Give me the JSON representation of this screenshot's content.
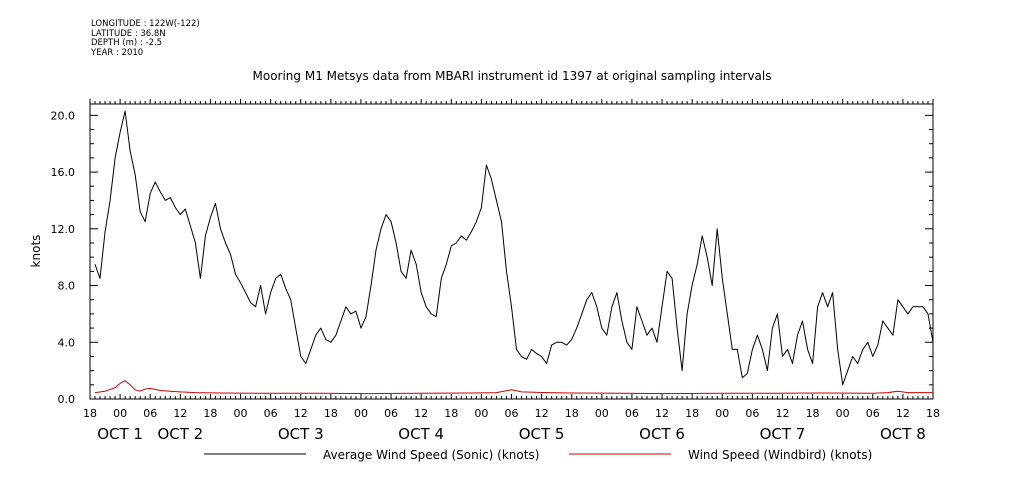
{
  "metadata": {
    "longitude": "LONGITUDE : 122W(-122)",
    "latitude": "LATITUDE : 36.8N",
    "depth": "DEPTH (m) : -2.5",
    "year": "YEAR : 2010"
  },
  "chart_data": {
    "type": "line",
    "title": "Mooring M1 Metsys data from MBARI instrument id 1397 at original sampling intervals",
    "ylabel": "knots",
    "xlabel": "",
    "ylim": [
      0,
      20.8
    ],
    "yticks": [
      0.0,
      4.0,
      8.0,
      12.0,
      16.0,
      20.0
    ],
    "ytick_labels": [
      "0.0",
      "4.0",
      "8.0",
      "12.0",
      "16.0",
      "20.0"
    ],
    "xlim_hours": [
      -6,
      162
    ],
    "x_ticks": [
      "18",
      "00",
      "06",
      "12",
      "18",
      "00",
      "06",
      "12",
      "18",
      "00",
      "06",
      "12",
      "18",
      "00",
      "06",
      "12",
      "18",
      "00",
      "06",
      "12",
      "18",
      "00",
      "06",
      "12",
      "18",
      "00",
      "06",
      "12",
      "18"
    ],
    "day_labels": [
      {
        "text": "OCT 1",
        "hour": 0
      },
      {
        "text": "OCT 2",
        "hour": 12
      },
      {
        "text": "OCT 3",
        "hour": 36
      },
      {
        "text": "OCT 4",
        "hour": 60
      },
      {
        "text": "OCT 5",
        "hour": 84
      },
      {
        "text": "OCT 6",
        "hour": 108
      },
      {
        "text": "OCT 7",
        "hour": 132
      },
      {
        "text": "OCT 8",
        "hour": 156
      }
    ],
    "legend_position": "bottom",
    "series": [
      {
        "name": "Average Wind Speed (Sonic) (knots)",
        "color": "#000000",
        "x_hours": [
          -5,
          -4,
          -3,
          -2,
          -1,
          0,
          1,
          2,
          3,
          4,
          5,
          6,
          7,
          8,
          9,
          10,
          11,
          12,
          13,
          14,
          15,
          16,
          17,
          18,
          19,
          20,
          21,
          22,
          23,
          24,
          25,
          26,
          27,
          28,
          29,
          30,
          31,
          32,
          33,
          34,
          35,
          36,
          37,
          38,
          39,
          40,
          41,
          42,
          43,
          44,
          45,
          46,
          47,
          48,
          49,
          50,
          51,
          52,
          53,
          54,
          55,
          56,
          57,
          58,
          59,
          60,
          61,
          62,
          63,
          64,
          65,
          66,
          67,
          68,
          69,
          70,
          71,
          72,
          73,
          74,
          75,
          76,
          77,
          78,
          79,
          80,
          81,
          82,
          83,
          84,
          85,
          86,
          87,
          88,
          89,
          90,
          91,
          92,
          93,
          94,
          95,
          96,
          97,
          98,
          99,
          100,
          101,
          102,
          103,
          104,
          105,
          106,
          107,
          108,
          109,
          110,
          111,
          112,
          113,
          114,
          115,
          116,
          117,
          118,
          119,
          120,
          121,
          122,
          123,
          124,
          125,
          126,
          127,
          128,
          129,
          130,
          131,
          132,
          133,
          134,
          135,
          136,
          137,
          138,
          139,
          140,
          141,
          142,
          143,
          144,
          145,
          146,
          147,
          148,
          149,
          150,
          151,
          152,
          153,
          154,
          155,
          156,
          157,
          158,
          159,
          160,
          161,
          162
        ],
        "values": [
          9.5,
          8.5,
          11.8,
          14.0,
          17.0,
          18.8,
          20.3,
          17.5,
          15.8,
          13.2,
          12.5,
          14.5,
          15.3,
          14.6,
          14.0,
          14.2,
          13.5,
          13.0,
          13.4,
          12.2,
          11.0,
          8.5,
          11.5,
          12.8,
          13.8,
          12.0,
          11.0,
          10.2,
          8.8,
          8.2,
          7.5,
          6.8,
          6.5,
          8.0,
          6.0,
          7.5,
          8.5,
          8.8,
          7.8,
          7.0,
          5.0,
          3.0,
          2.5,
          3.5,
          4.5,
          5.0,
          4.2,
          4.0,
          4.5,
          5.5,
          6.5,
          6.0,
          6.2,
          5.0,
          5.8,
          8.0,
          10.5,
          12.0,
          13.0,
          12.5,
          11.0,
          9.0,
          8.5,
          10.5,
          9.5,
          7.5,
          6.5,
          6.0,
          5.8,
          8.5,
          9.5,
          10.8,
          11.0,
          11.5,
          11.2,
          11.8,
          12.5,
          13.5,
          16.5,
          15.5,
          14.0,
          12.5,
          9.0,
          6.5,
          3.5,
          3.0,
          2.8,
          3.5,
          3.2,
          3.0,
          2.5,
          3.8,
          4.0,
          4.0,
          3.8,
          4.2,
          5.0,
          6.0,
          7.0,
          7.5,
          6.5,
          5.0,
          4.5,
          6.5,
          7.5,
          5.5,
          4.0,
          3.5,
          6.5,
          5.5,
          4.5,
          5.0,
          4.0,
          6.5,
          9.0,
          8.5,
          5.0,
          2.0,
          6.0,
          8.0,
          9.5,
          11.5,
          10.0,
          8.0,
          12.0,
          8.5,
          6.0,
          3.5,
          3.5,
          1.5,
          1.8,
          3.5,
          4.5,
          3.5,
          2.0,
          5.0,
          6.0,
          3.0,
          3.5,
          2.5,
          4.5,
          5.5,
          3.5,
          2.5,
          6.5,
          7.5,
          6.5,
          7.5,
          3.5,
          1.0,
          2.0,
          3.0,
          2.5,
          3.5,
          4.0,
          3.0,
          3.8,
          5.5,
          5.0,
          4.5,
          7.0,
          6.5,
          6.0,
          6.5,
          6.5,
          6.5,
          6.0,
          4.0
        ]
      },
      {
        "name": "Wind Speed (Windbird) (knots)",
        "color": "#cc0000",
        "x_hours": [
          -5,
          -3,
          -1,
          0,
          1,
          2,
          3,
          4,
          5,
          6,
          8,
          10,
          12,
          15,
          20,
          30,
          40,
          50,
          60,
          70,
          75,
          78,
          80,
          85,
          90,
          100,
          110,
          120,
          130,
          140,
          150,
          153,
          155,
          157,
          160,
          162
        ],
        "values": [
          0.45,
          0.55,
          0.8,
          1.1,
          1.3,
          1.0,
          0.65,
          0.55,
          0.7,
          0.75,
          0.6,
          0.55,
          0.5,
          0.45,
          0.42,
          0.4,
          0.4,
          0.38,
          0.4,
          0.42,
          0.45,
          0.65,
          0.5,
          0.45,
          0.42,
          0.4,
          0.38,
          0.4,
          0.4,
          0.42,
          0.4,
          0.45,
          0.55,
          0.45,
          0.45,
          0.45
        ]
      }
    ]
  }
}
